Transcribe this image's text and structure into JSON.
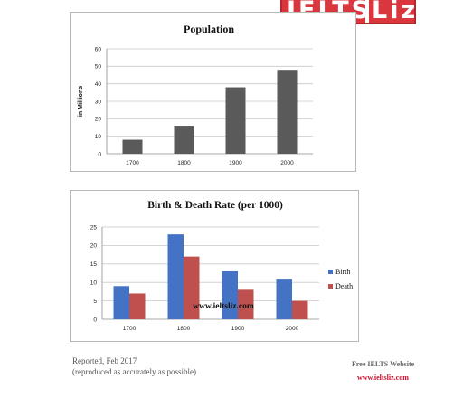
{
  "logo": {
    "text_main": "IELTS",
    "text_second": "Liz"
  },
  "footer": {
    "reported": "Reported, Feb 2017",
    "note": "(reproduced as accurately as possible)",
    "free_label": "Free IELTS Website",
    "website": "www.ieltsliz.com"
  },
  "chart_data": [
    {
      "type": "bar",
      "title": "Population",
      "xlabel": "",
      "ylabel": "in Millions",
      "categories": [
        "1700",
        "1800",
        "1900",
        "2000"
      ],
      "series": [
        {
          "values": [
            8,
            16,
            38,
            48
          ],
          "color": "#5a5a5a"
        }
      ],
      "ylim": [
        0,
        60
      ],
      "yticks": [
        0,
        10,
        20,
        30,
        40,
        50,
        60
      ],
      "grid": true,
      "legend": null
    },
    {
      "type": "bar",
      "title": "Birth & Death Rate (per 1000)",
      "xlabel": "",
      "ylabel": "",
      "categories": [
        "1700",
        "1800",
        "1900",
        "2000"
      ],
      "series": [
        {
          "name": "Birth",
          "values": [
            9,
            23,
            13,
            11
          ],
          "color": "#4472c4"
        },
        {
          "name": "Death",
          "values": [
            7,
            17,
            8,
            5
          ],
          "color": "#c0504d"
        }
      ],
      "ylim": [
        0,
        25
      ],
      "yticks": [
        0,
        5,
        10,
        15,
        20,
        25
      ],
      "grid": true,
      "legend": "right",
      "watermark": "www.ieltsliz.com"
    }
  ]
}
